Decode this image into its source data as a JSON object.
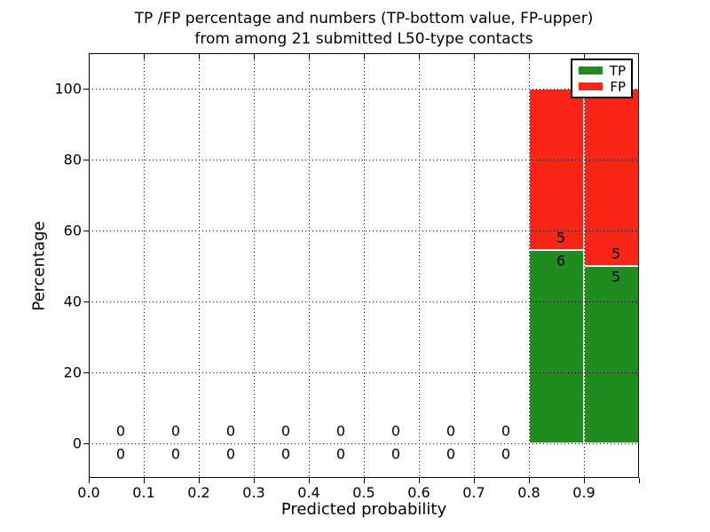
{
  "figure": {
    "title_line1": "TP /FP percentage and numbers (TP-bottom value, FP-upper)",
    "title_line2": "from among 21 submitted L50-type contacts"
  },
  "chart_data": {
    "type": "bar",
    "stacked": true,
    "title": "TP /FP percentage and numbers (TP-bottom value, FP-upper) from among 21 submitted L50-type contacts",
    "xlabel": "Predicted probability",
    "ylabel": "Percentage",
    "xlim": [
      0.0,
      1.0
    ],
    "ylim": [
      -10,
      110
    ],
    "x_tick_labels": [
      "0.0",
      "0.1",
      "0.2",
      "0.3",
      "0.4",
      "0.5",
      "0.6",
      "0.7",
      "0.8",
      "0.9"
    ],
    "y_ticks": [
      0,
      20,
      40,
      60,
      80,
      100
    ],
    "grid": "dotted both axes",
    "total_contacts": 21,
    "legend": {
      "position": "upper right",
      "entries": [
        {
          "label": "TP",
          "color": "#1e8c1e"
        },
        {
          "label": "FP",
          "color": "#fa2518"
        }
      ]
    },
    "colors": {
      "tp": "#1e8c1e",
      "fp": "#fa2518"
    },
    "bins": [
      {
        "x0": 0.0,
        "x1": 0.1,
        "tp_count": 0,
        "fp_count": 0,
        "tp_pct": 0,
        "fp_pct": 0
      },
      {
        "x0": 0.1,
        "x1": 0.2,
        "tp_count": 0,
        "fp_count": 0,
        "tp_pct": 0,
        "fp_pct": 0
      },
      {
        "x0": 0.2,
        "x1": 0.3,
        "tp_count": 0,
        "fp_count": 0,
        "tp_pct": 0,
        "fp_pct": 0
      },
      {
        "x0": 0.3,
        "x1": 0.4,
        "tp_count": 0,
        "fp_count": 0,
        "tp_pct": 0,
        "fp_pct": 0
      },
      {
        "x0": 0.4,
        "x1": 0.5,
        "tp_count": 0,
        "fp_count": 0,
        "tp_pct": 0,
        "fp_pct": 0
      },
      {
        "x0": 0.5,
        "x1": 0.6,
        "tp_count": 0,
        "fp_count": 0,
        "tp_pct": 0,
        "fp_pct": 0
      },
      {
        "x0": 0.6,
        "x1": 0.7,
        "tp_count": 0,
        "fp_count": 0,
        "tp_pct": 0,
        "fp_pct": 0
      },
      {
        "x0": 0.7,
        "x1": 0.8,
        "tp_count": 0,
        "fp_count": 0,
        "tp_pct": 0,
        "fp_pct": 0
      },
      {
        "x0": 0.8,
        "x1": 0.9,
        "tp_count": 6,
        "fp_count": 5,
        "tp_pct": 54.5,
        "fp_pct": 45.5
      },
      {
        "x0": 0.9,
        "x1": 1.0,
        "tp_count": 5,
        "fp_count": 5,
        "tp_pct": 50.0,
        "fp_pct": 50.0
      }
    ]
  }
}
